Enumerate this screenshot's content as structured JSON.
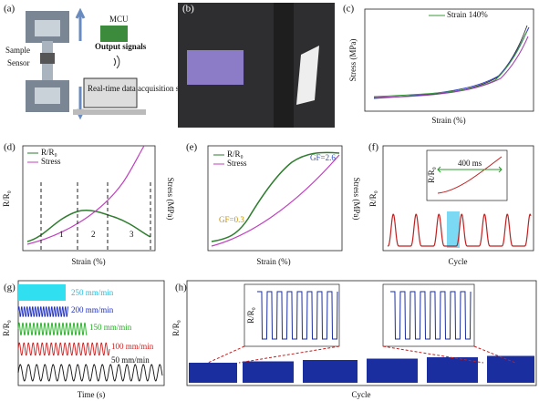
{
  "panels": {
    "a": {
      "label": "(a)",
      "sample": "Sample",
      "sensor": "Sensor",
      "mcu": "MCU",
      "output": "Output signals",
      "software": "Real-time data acquisition software"
    },
    "b": {
      "label": "(b)"
    },
    "c": {
      "label": "(c)",
      "legend": "Strain 140%",
      "ylabel": "Stress (MPa)",
      "xlabel": "Strain (%)"
    },
    "d": {
      "label": "(d)",
      "legend": [
        "R/R₀",
        "Stress"
      ],
      "ylabel": "R/R₀",
      "y2label": "Stress (MPa)",
      "xlabel": "Strain (%)",
      "regions": [
        "1",
        "2",
        "3"
      ]
    },
    "e": {
      "label": "(e)",
      "legend": [
        "R/R₀",
        "Stress"
      ],
      "y2label": "Stress (MPa)",
      "xlabel": "Strain (%)",
      "annotations": [
        "GF=0.3",
        "GF=2.6"
      ]
    },
    "f": {
      "label": "(f)",
      "ylabel": "R/R₀",
      "xlabel": "Cycle",
      "inset_label": "400 ms",
      "inset_ylabel": "R/R₀"
    },
    "g": {
      "label": "(g)",
      "ylabel": "R/R₀",
      "xlabel": "Time (s)",
      "rates": [
        "250 mm/min",
        "200 mm/min",
        "150 mm/min",
        "100 mm/min",
        "50 mm/min"
      ]
    },
    "h": {
      "label": "(h)",
      "ylabel": "R/R₀",
      "xlabel": "Cycle",
      "inset_ylabel": "R/R₀"
    }
  }
}
